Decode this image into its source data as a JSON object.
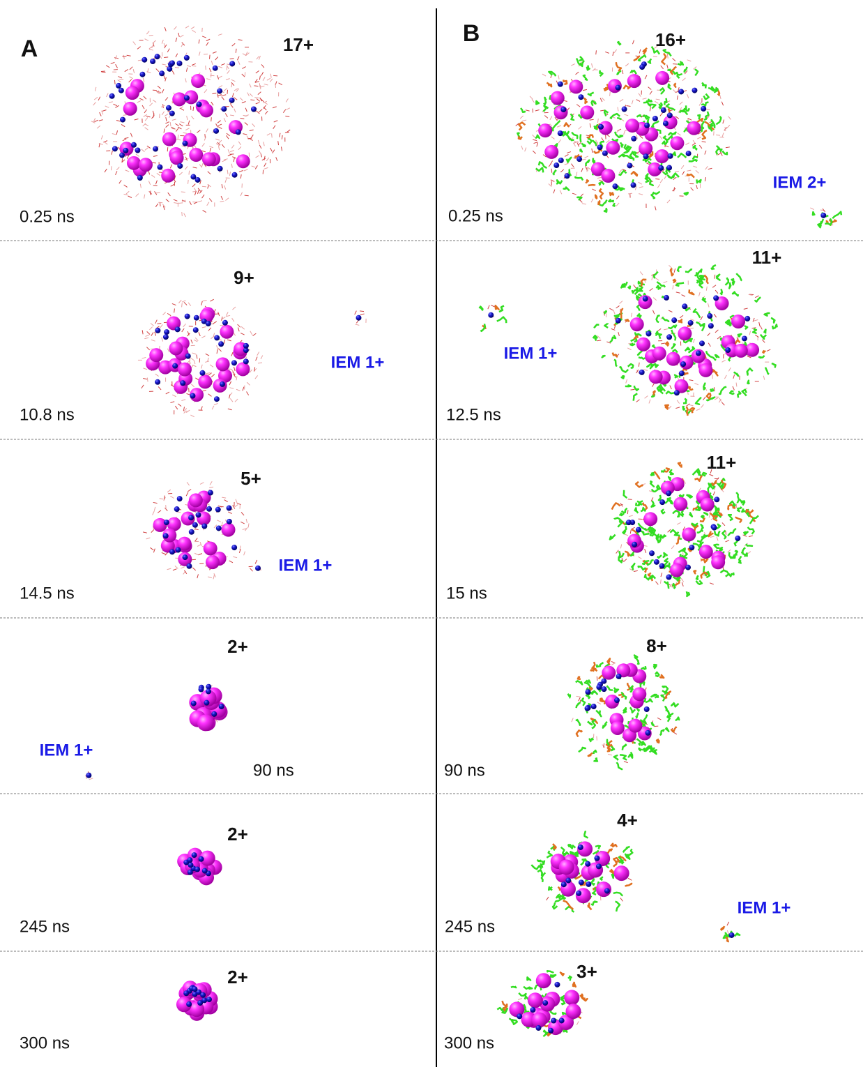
{
  "panels": [
    {
      "label": "A",
      "rows": [
        {
          "charge": "17+",
          "time": "0.25 ns"
        },
        {
          "charge": "9+",
          "time": "10.8 ns",
          "iem": "IEM 1+"
        },
        {
          "charge": "5+",
          "time": "14.5 ns",
          "iem": "IEM 1+"
        },
        {
          "charge": "2+",
          "time": "90 ns",
          "iem": "IEM 1+"
        },
        {
          "charge": "2+",
          "time": "245 ns"
        },
        {
          "charge": "2+",
          "time": "300 ns"
        }
      ]
    },
    {
      "label": "B",
      "rows": [
        {
          "charge": "16+",
          "time": "0.25 ns",
          "iem": "IEM 2+"
        },
        {
          "charge": "11+",
          "time": "12.5 ns",
          "iem": "IEM 1+"
        },
        {
          "charge": "11+",
          "time": "15 ns"
        },
        {
          "charge": "8+",
          "time": "90 ns"
        },
        {
          "charge": "4+",
          "time": "245 ns",
          "iem": "IEM 1+"
        },
        {
          "charge": "3+",
          "time": "300 ns"
        }
      ]
    }
  ]
}
